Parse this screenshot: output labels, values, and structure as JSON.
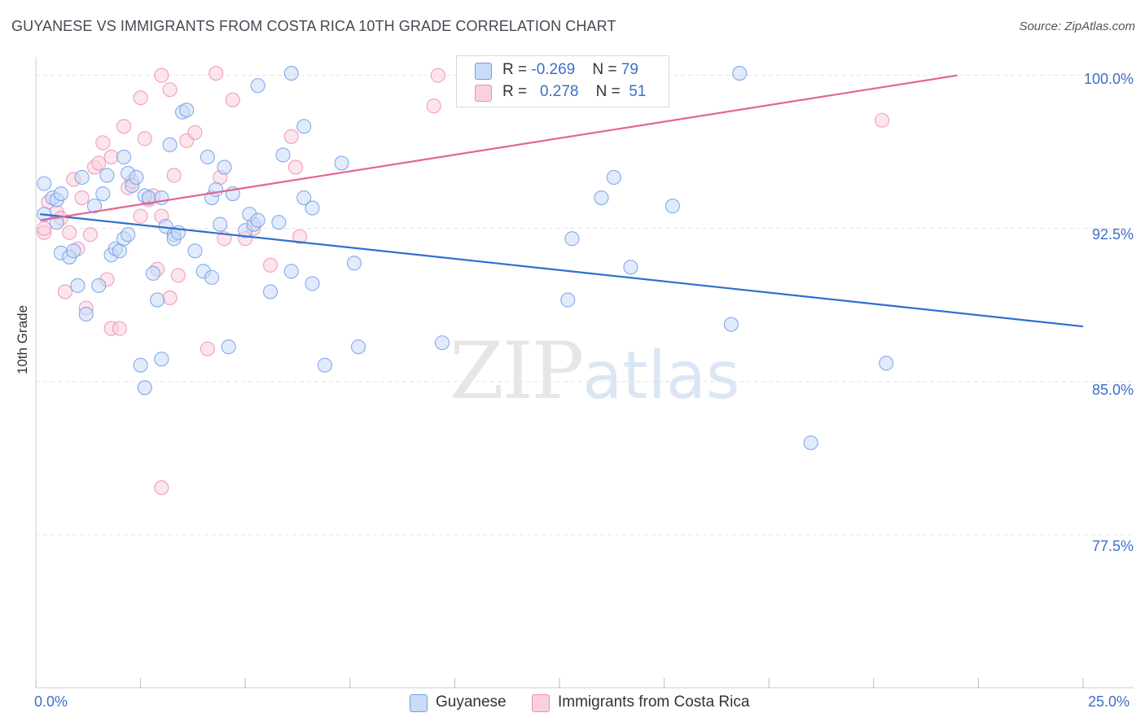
{
  "header": {
    "title": "GUYANESE VS IMMIGRANTS FROM COSTA RICA 10TH GRADE CORRELATION CHART",
    "source": "Source: ZipAtlas.com"
  },
  "watermark": {
    "zip": "ZIP",
    "atlas": "atlas"
  },
  "colors": {
    "blue": "#6f9ee8",
    "blue_fill": "#c9dbf7",
    "blue_line": "#2f6fce",
    "pink": "#ee8fb0",
    "pink_fill": "#f9d0de",
    "pink_line": "#e26592",
    "grid": "#e2e2e2",
    "tick_text": "#3d6fc4"
  },
  "legend_top": [
    {
      "r_label": "R = ",
      "r_value": "-0.269",
      "n_label": "N = ",
      "n_value": "79"
    },
    {
      "r_label": "R = ",
      "r_value": "0.278",
      "n_label": "N = ",
      "n_value": "51"
    }
  ],
  "chart_data": {
    "type": "scatter",
    "title": "GUYANESE VS IMMIGRANTS FROM COSTA RICA 10TH GRADE CORRELATION CHART",
    "xlabel": "",
    "ylabel": "10th Grade",
    "xlim": [
      0,
      25
    ],
    "ylim": [
      70,
      100.9
    ],
    "x_tick_labels": [
      "0.0%",
      "25.0%"
    ],
    "y_ticks": [
      77.5,
      85.0,
      92.5,
      100.0
    ],
    "y_tick_labels": [
      "77.5%",
      "85.0%",
      "92.5%",
      "100.0%"
    ],
    "grid": true,
    "legend_position": "bottom",
    "series": [
      {
        "name": "Guyanese",
        "R": -0.269,
        "N": 79,
        "trend": [
          [
            0.1,
            93.2
          ],
          [
            25.0,
            87.7
          ]
        ],
        "points": [
          [
            0.2,
            94.7
          ],
          [
            0.2,
            93.2
          ],
          [
            0.4,
            94.0
          ],
          [
            0.5,
            93.9
          ],
          [
            0.6,
            94.2
          ],
          [
            0.5,
            92.8
          ],
          [
            0.6,
            91.3
          ],
          [
            0.8,
            91.1
          ],
          [
            0.9,
            91.4
          ],
          [
            1.0,
            89.7
          ],
          [
            1.2,
            88.3
          ],
          [
            1.1,
            95.0
          ],
          [
            1.4,
            93.6
          ],
          [
            1.5,
            89.7
          ],
          [
            1.6,
            94.2
          ],
          [
            1.7,
            95.1
          ],
          [
            1.8,
            91.2
          ],
          [
            1.9,
            91.5
          ],
          [
            2.0,
            91.4
          ],
          [
            2.1,
            92.0
          ],
          [
            2.1,
            96.0
          ],
          [
            2.2,
            92.2
          ],
          [
            2.2,
            95.2
          ],
          [
            2.3,
            94.6
          ],
          [
            2.4,
            95.0
          ],
          [
            2.5,
            85.8
          ],
          [
            2.6,
            84.7
          ],
          [
            2.6,
            94.1
          ],
          [
            2.7,
            94.0
          ],
          [
            2.8,
            90.3
          ],
          [
            2.9,
            89.0
          ],
          [
            3.0,
            86.1
          ],
          [
            3.0,
            94.0
          ],
          [
            3.1,
            92.6
          ],
          [
            3.2,
            96.6
          ],
          [
            3.3,
            92.2
          ],
          [
            3.3,
            92.0
          ],
          [
            3.4,
            92.3
          ],
          [
            3.5,
            98.2
          ],
          [
            3.6,
            98.3
          ],
          [
            3.8,
            91.4
          ],
          [
            4.0,
            90.4
          ],
          [
            4.1,
            96.0
          ],
          [
            4.2,
            94.0
          ],
          [
            4.2,
            90.1
          ],
          [
            4.3,
            94.4
          ],
          [
            4.4,
            92.7
          ],
          [
            4.5,
            95.5
          ],
          [
            4.6,
            86.7
          ],
          [
            4.7,
            94.2
          ],
          [
            5.0,
            92.4
          ],
          [
            5.2,
            92.7
          ],
          [
            5.3,
            99.5
          ],
          [
            5.1,
            93.2
          ],
          [
            5.3,
            92.9
          ],
          [
            5.6,
            89.4
          ],
          [
            5.8,
            92.8
          ],
          [
            5.9,
            96.1
          ],
          [
            6.1,
            90.4
          ],
          [
            6.1,
            100.1
          ],
          [
            6.4,
            97.5
          ],
          [
            6.4,
            94.0
          ],
          [
            6.6,
            93.5
          ],
          [
            6.6,
            89.8
          ],
          [
            6.9,
            85.8
          ],
          [
            7.3,
            95.7
          ],
          [
            7.6,
            90.8
          ],
          [
            7.7,
            86.7
          ],
          [
            9.7,
            86.9
          ],
          [
            12.7,
            89.0
          ],
          [
            12.8,
            92.0
          ],
          [
            13.5,
            94.0
          ],
          [
            13.8,
            95.0
          ],
          [
            14.2,
            90.6
          ],
          [
            16.6,
            87.8
          ],
          [
            16.8,
            100.1
          ],
          [
            18.5,
            82.0
          ],
          [
            20.3,
            85.9
          ],
          [
            15.2,
            93.6
          ]
        ]
      },
      {
        "name": "Immigrants from Costa Rica",
        "R": 0.278,
        "N": 51,
        "trend": [
          [
            0.1,
            92.9
          ],
          [
            22.0,
            100.0
          ]
        ],
        "points": [
          [
            0.2,
            92.3
          ],
          [
            0.2,
            92.5
          ],
          [
            0.3,
            93.8
          ],
          [
            0.5,
            93.3
          ],
          [
            0.6,
            93.0
          ],
          [
            0.7,
            89.4
          ],
          [
            0.8,
            92.3
          ],
          [
            0.9,
            94.9
          ],
          [
            1.0,
            91.5
          ],
          [
            1.1,
            94.0
          ],
          [
            1.2,
            88.6
          ],
          [
            1.3,
            92.2
          ],
          [
            1.4,
            95.5
          ],
          [
            1.5,
            95.7
          ],
          [
            1.6,
            96.7
          ],
          [
            1.7,
            90.0
          ],
          [
            1.8,
            96.0
          ],
          [
            1.8,
            87.6
          ],
          [
            2.0,
            87.6
          ],
          [
            2.1,
            97.5
          ],
          [
            2.2,
            94.5
          ],
          [
            2.3,
            94.8
          ],
          [
            2.5,
            93.1
          ],
          [
            2.5,
            98.9
          ],
          [
            2.6,
            96.9
          ],
          [
            2.7,
            93.9
          ],
          [
            2.8,
            94.1
          ],
          [
            2.9,
            90.5
          ],
          [
            3.0,
            93.1
          ],
          [
            3.0,
            100.0
          ],
          [
            3.2,
            89.1
          ],
          [
            3.2,
            99.3
          ],
          [
            3.3,
            95.1
          ],
          [
            3.4,
            90.2
          ],
          [
            3.6,
            96.8
          ],
          [
            3.8,
            97.2
          ],
          [
            4.1,
            86.6
          ],
          [
            4.4,
            95.0
          ],
          [
            4.5,
            92.0
          ],
          [
            4.7,
            98.8
          ],
          [
            5.0,
            92.0
          ],
          [
            5.2,
            92.5
          ],
          [
            5.6,
            90.7
          ],
          [
            6.1,
            97.0
          ],
          [
            6.2,
            95.5
          ],
          [
            6.3,
            92.1
          ],
          [
            3.0,
            79.8
          ],
          [
            4.3,
            100.1
          ],
          [
            9.5,
            98.5
          ],
          [
            9.6,
            100.0
          ],
          [
            20.2,
            97.8
          ]
        ]
      }
    ]
  },
  "legend_bottom": [
    {
      "label": "Guyanese"
    },
    {
      "label": "Immigrants from Costa Rica"
    }
  ]
}
